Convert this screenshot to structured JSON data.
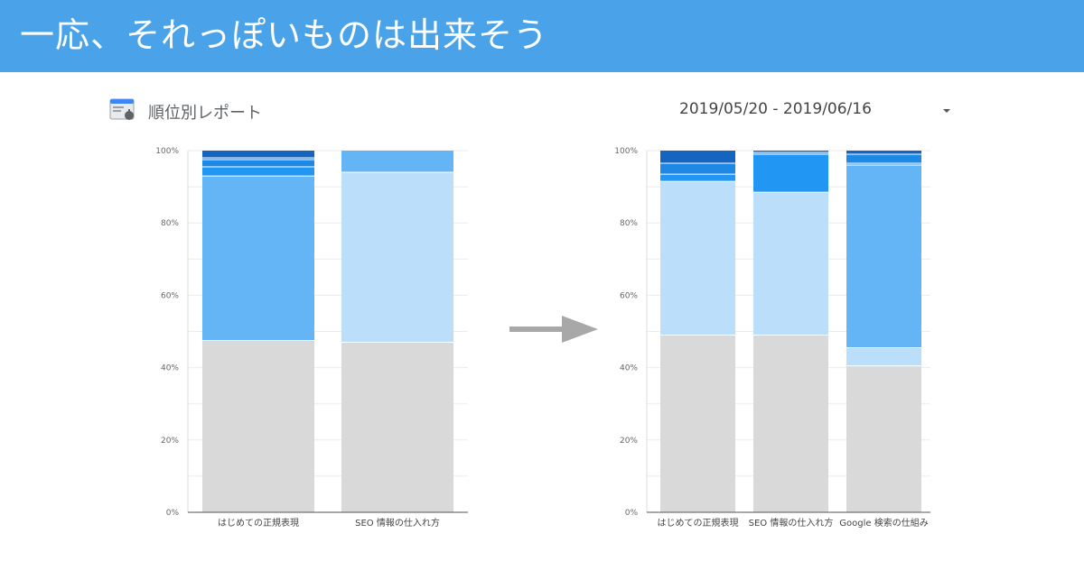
{
  "header": {
    "title": "一応、それっぽいものは出来そう"
  },
  "report": {
    "title": "順位別レポート",
    "icon": "search-console-icon"
  },
  "date_picker": {
    "value": "2019/05/20 - 2019/06/16",
    "icon": "caret-down-icon"
  },
  "colors": {
    "title_bar": "#4aa3e8",
    "series": [
      "#d9d9d9",
      "#bbdefb",
      "#64b5f6",
      "#2196f3",
      "#1e88e5",
      "#1976d2",
      "#1565c0"
    ]
  },
  "chart_data": [
    {
      "type": "bar",
      "stacked": true,
      "percent_axis": true,
      "ylim": [
        0,
        100
      ],
      "yticks": [
        "0%",
        "20%",
        "40%",
        "60%",
        "80%",
        "100%"
      ],
      "categories": [
        "はじめての正規表現",
        "SEO 情報の仕入れ方"
      ],
      "series": [
        {
          "color": "#d9d9d9",
          "values": [
            47.5,
            47
          ]
        },
        {
          "color": "#bbdefb",
          "values": [
            0,
            47
          ]
        },
        {
          "color": "#64b5f6",
          "values": [
            45.5,
            6
          ]
        },
        {
          "color": "#2196f3",
          "values": [
            2.5,
            0
          ]
        },
        {
          "color": "#1e88e5",
          "values": [
            2,
            0
          ]
        },
        {
          "color": "#1976d2",
          "values": [
            0.5,
            0
          ]
        },
        {
          "color": "#1565c0",
          "values": [
            2,
            0
          ]
        }
      ],
      "grid": true
    },
    {
      "type": "bar",
      "stacked": true,
      "percent_axis": true,
      "ylim": [
        0,
        100
      ],
      "yticks": [
        "0%",
        "20%",
        "40%",
        "60%",
        "80%",
        "100%"
      ],
      "categories": [
        "はじめての正規表現",
        "SEO 情報の仕入れ方",
        "Google 検索の仕組み"
      ],
      "series": [
        {
          "color": "#d9d9d9",
          "values": [
            49,
            49,
            40.5
          ]
        },
        {
          "color": "#bbdefb",
          "values": [
            42.5,
            39.5,
            5
          ]
        },
        {
          "color": "#64b5f6",
          "values": [
            0,
            0,
            50.5
          ]
        },
        {
          "color": "#2196f3",
          "values": [
            2,
            10.5,
            0.5
          ]
        },
        {
          "color": "#1e88e5",
          "values": [
            3,
            0.5,
            2.5
          ]
        },
        {
          "color": "#1976d2",
          "values": [
            0,
            0,
            0
          ]
        },
        {
          "color": "#1565c0",
          "values": [
            3.5,
            0.5,
            1
          ]
        }
      ],
      "grid": true
    }
  ]
}
